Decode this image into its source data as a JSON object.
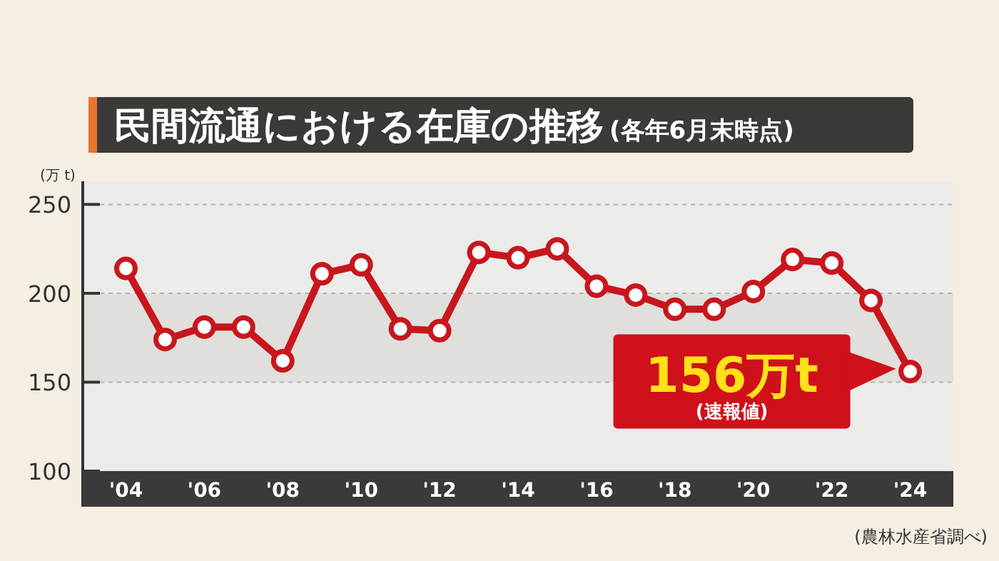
{
  "chart_data": {
    "type": "line",
    "title": "民間流通における在庫の推移",
    "subtitle": "(各年6月末時点)",
    "ylabel": "(万 t)",
    "categories": [
      "'04",
      null,
      "'06",
      null,
      "'08",
      null,
      "'10",
      null,
      "'12",
      null,
      "'14",
      null,
      "'16",
      null,
      "'18",
      null,
      "'20",
      null,
      "'22",
      null,
      "'24"
    ],
    "series": [
      {
        "color": "#c8161d",
        "values": [
          214,
          174,
          181,
          181,
          162,
          211,
          216,
          180,
          179,
          223,
          220,
          225,
          204,
          199,
          191,
          191,
          201,
          219,
          217,
          196,
          156
        ]
      }
    ],
    "ylim": [
      100,
      263
    ],
    "yticks": [
      100,
      150,
      200,
      250
    ],
    "grid": "y",
    "marker": "circle",
    "line_style": "solid",
    "bands": [
      {
        "axis": "y",
        "from": 150,
        "to": 200,
        "color": "#e0dfdb"
      }
    ],
    "annotations": [
      {
        "text": "156万t",
        "x": "'24",
        "y": 156
      },
      "(速報値)",
      "(農林水産省調べ)"
    ]
  }
}
